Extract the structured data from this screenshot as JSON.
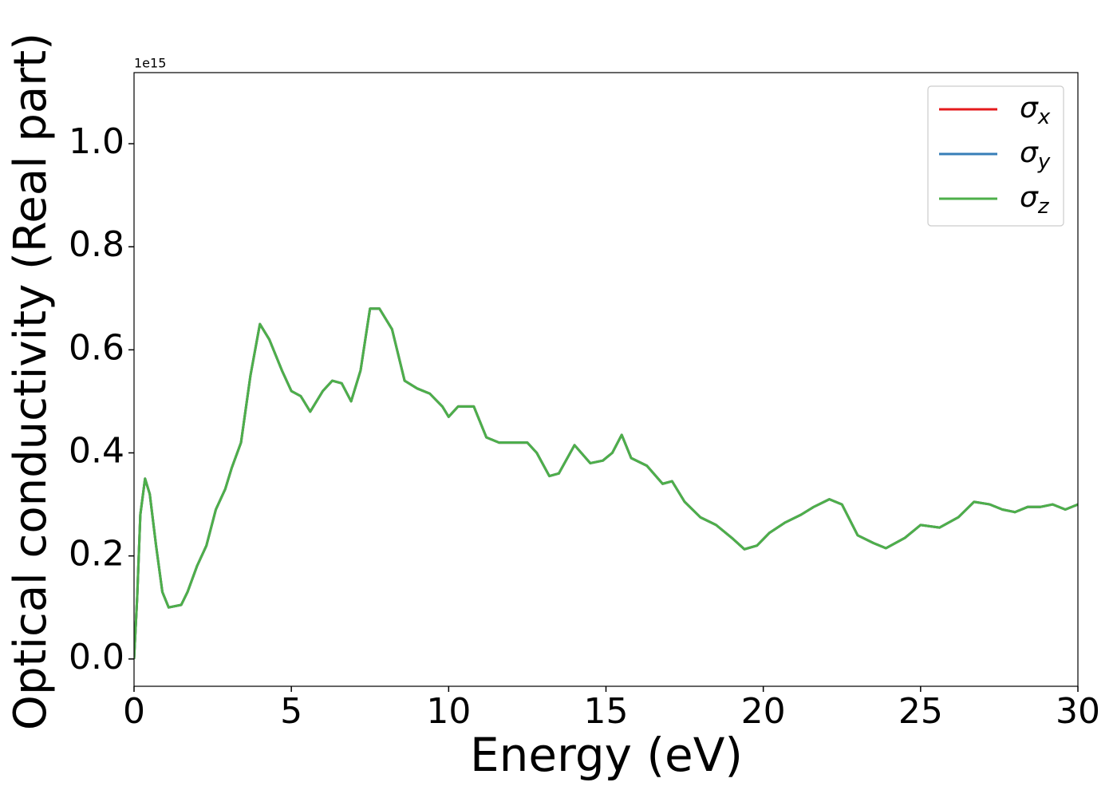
{
  "chart_data": {
    "type": "line",
    "xlabel": "Energy (eV)",
    "ylabel": "Optical conductivity (Real part)",
    "y_offset_label": "1e15",
    "xlim": [
      0,
      30
    ],
    "xticks": [
      0,
      5,
      10,
      15,
      20,
      25,
      30
    ],
    "ylim": [
      -0.053,
      1.138
    ],
    "yticks": [
      {
        "value": 0,
        "label": "0.0"
      },
      0.2,
      0.4,
      0.6,
      0.8,
      {
        "value": 1,
        "label": "1.0"
      }
    ],
    "legend": "upper right",
    "x": [
      0,
      0.1,
      0.2,
      0.35,
      0.5,
      0.7,
      0.9,
      1.1,
      1.5,
      1.7,
      2.0,
      2.3,
      2.6,
      2.9,
      3.1,
      3.4,
      3.7,
      4.0,
      4.3,
      4.7,
      5.0,
      5.3,
      5.6,
      6.0,
      6.3,
      6.6,
      6.9,
      7.2,
      7.5,
      7.8,
      8.2,
      8.6,
      9.0,
      9.4,
      9.8,
      10.0,
      10.3,
      10.8,
      11.2,
      11.6,
      12.0,
      12.5,
      12.8,
      13.2,
      13.5,
      14.0,
      14.5,
      14.9,
      15.2,
      15.5,
      15.8,
      16.3,
      16.8,
      17.1,
      17.5,
      18.0,
      18.5,
      19.0,
      19.4,
      19.8,
      20.2,
      20.7,
      21.2,
      21.6,
      22.1,
      22.5,
      23.0,
      23.5,
      23.9,
      24.5,
      25.0,
      25.6,
      26.2,
      26.7,
      27.2,
      27.6,
      28.0,
      28.4,
      28.8,
      29.2,
      29.6,
      30.0
    ],
    "series": [
      {
        "name": "σx",
        "color": "#e41a1c",
        "values": [
          0,
          0.12,
          0.28,
          0.35,
          0.32,
          0.22,
          0.13,
          0.1,
          0.105,
          0.13,
          0.18,
          0.22,
          0.29,
          0.33,
          0.37,
          0.42,
          0.55,
          0.65,
          0.62,
          0.56,
          0.52,
          0.51,
          0.48,
          0.52,
          0.54,
          0.535,
          0.5,
          0.56,
          0.68,
          0.68,
          0.64,
          0.54,
          0.525,
          0.515,
          0.49,
          0.47,
          0.49,
          0.49,
          0.43,
          0.42,
          0.42,
          0.42,
          0.4,
          0.355,
          0.36,
          0.415,
          0.38,
          0.385,
          0.4,
          0.435,
          0.39,
          0.375,
          0.34,
          0.345,
          0.305,
          0.275,
          0.26,
          0.235,
          0.213,
          0.22,
          0.245,
          0.265,
          0.28,
          0.295,
          0.31,
          0.3,
          0.24,
          0.225,
          0.215,
          0.235,
          0.26,
          0.255,
          0.275,
          0.305,
          0.3,
          0.29,
          0.285,
          0.295,
          0.295,
          0.3,
          0.29,
          0.3
        ]
      },
      {
        "name": "σy",
        "color": "#377eb8",
        "values": [
          0,
          0.12,
          0.28,
          0.35,
          0.32,
          0.22,
          0.13,
          0.1,
          0.105,
          0.13,
          0.18,
          0.22,
          0.29,
          0.33,
          0.37,
          0.42,
          0.55,
          0.65,
          0.62,
          0.56,
          0.52,
          0.51,
          0.48,
          0.52,
          0.54,
          0.535,
          0.5,
          0.56,
          0.68,
          0.68,
          0.64,
          0.54,
          0.525,
          0.515,
          0.49,
          0.47,
          0.49,
          0.49,
          0.43,
          0.42,
          0.42,
          0.42,
          0.4,
          0.355,
          0.36,
          0.415,
          0.38,
          0.385,
          0.4,
          0.435,
          0.39,
          0.375,
          0.34,
          0.345,
          0.305,
          0.275,
          0.26,
          0.235,
          0.213,
          0.22,
          0.245,
          0.265,
          0.28,
          0.295,
          0.31,
          0.3,
          0.24,
          0.225,
          0.215,
          0.235,
          0.26,
          0.255,
          0.275,
          0.305,
          0.3,
          0.29,
          0.285,
          0.295,
          0.295,
          0.3,
          0.29,
          0.3
        ]
      },
      {
        "name": "σz",
        "color": "#4daf4a",
        "values": [
          0,
          0.12,
          0.28,
          0.35,
          0.32,
          0.22,
          0.13,
          0.1,
          0.105,
          0.13,
          0.18,
          0.22,
          0.29,
          0.33,
          0.37,
          0.42,
          0.55,
          0.65,
          0.62,
          0.56,
          0.52,
          0.51,
          0.48,
          0.52,
          0.54,
          0.535,
          0.5,
          0.56,
          0.68,
          0.68,
          0.64,
          0.54,
          0.525,
          0.515,
          0.49,
          0.47,
          0.49,
          0.49,
          0.43,
          0.42,
          0.42,
          0.42,
          0.4,
          0.355,
          0.36,
          0.415,
          0.38,
          0.385,
          0.4,
          0.435,
          0.39,
          0.375,
          0.34,
          0.345,
          0.305,
          0.275,
          0.26,
          0.235,
          0.213,
          0.22,
          0.245,
          0.265,
          0.28,
          0.295,
          0.31,
          0.3,
          0.24,
          0.225,
          0.215,
          0.235,
          0.26,
          0.255,
          0.275,
          0.305,
          0.3,
          0.29,
          0.285,
          0.295,
          0.295,
          0.3,
          0.29,
          0.3
        ]
      }
    ]
  }
}
